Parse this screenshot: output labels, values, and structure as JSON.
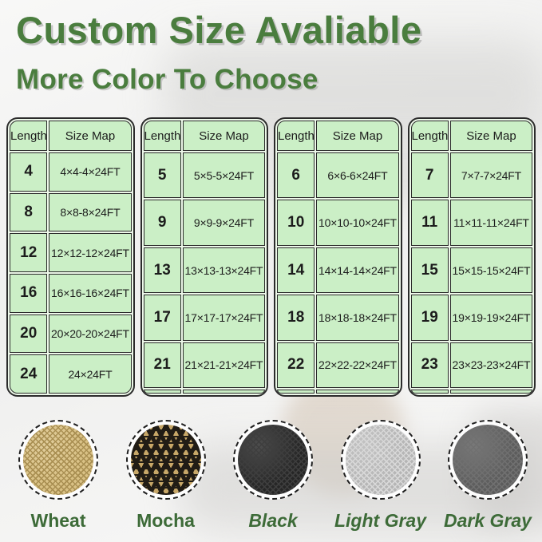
{
  "page": {
    "title": "Custom Size Avaliable",
    "subtitle": "More Color To Choose"
  },
  "theme": {
    "title_green": "#4a7d3e",
    "label_green": "#3d6b38",
    "cell_green": "#cbefc6",
    "cell_gap_green": "#edf8e9",
    "table_border": "#2b2b2b"
  },
  "tables": [
    {
      "headers": [
        "Length",
        "Size Map"
      ],
      "rows": [
        [
          "4",
          "4×4-4×24FT"
        ],
        [
          "8",
          "8×8-8×24FT"
        ],
        [
          "12",
          "12×12-12×24FT"
        ],
        [
          "16",
          "16×16-16×24FT"
        ],
        [
          "20",
          "20×20-20×24FT"
        ],
        [
          "24",
          "24×24FT"
        ]
      ]
    },
    {
      "headers": [
        "Length",
        "Size Map"
      ],
      "rows": [
        [
          "5",
          "5×5-5×24FT"
        ],
        [
          "9",
          "9×9-9×24FT"
        ],
        [
          "13",
          "13×13-13×24FT"
        ],
        [
          "17",
          "17×17-17×24FT"
        ],
        [
          "21",
          "21×21-21×24FT"
        ],
        [
          "",
          ""
        ]
      ]
    },
    {
      "headers": [
        "Length",
        "Size Map"
      ],
      "rows": [
        [
          "6",
          "6×6-6×24FT"
        ],
        [
          "10",
          "10×10-10×24FT"
        ],
        [
          "14",
          "14×14-14×24FT"
        ],
        [
          "18",
          "18×18-18×24FT"
        ],
        [
          "22",
          "22×22-22×24FT"
        ],
        [
          "",
          ""
        ]
      ]
    },
    {
      "headers": [
        "Length",
        "Size Map"
      ],
      "rows": [
        [
          "7",
          "7×7-7×24FT"
        ],
        [
          "11",
          "11×11-11×24FT"
        ],
        [
          "15",
          "15×15-15×24FT"
        ],
        [
          "19",
          "19×19-19×24FT"
        ],
        [
          "23",
          "23×23-23×24FT"
        ],
        [
          "",
          ""
        ]
      ]
    }
  ],
  "colors": [
    {
      "label": "Wheat",
      "base": "#d9c185",
      "accent": "#a98f52",
      "italic": false,
      "pattern": "fine"
    },
    {
      "label": "Mocha",
      "base": "#c7a768",
      "accent": "#211c15",
      "italic": false,
      "pattern": "coarse"
    },
    {
      "label": "Black",
      "base": "#262626",
      "accent": "#3e3e3e",
      "italic": true,
      "pattern": "fine"
    },
    {
      "label": "Light Gray",
      "base": "#b5b5b5",
      "accent": "#d8d8d8",
      "italic": true,
      "pattern": "fine"
    },
    {
      "label": "Dark Gray",
      "base": "#5c5c5c",
      "accent": "#707070",
      "italic": true,
      "pattern": "fine"
    }
  ]
}
